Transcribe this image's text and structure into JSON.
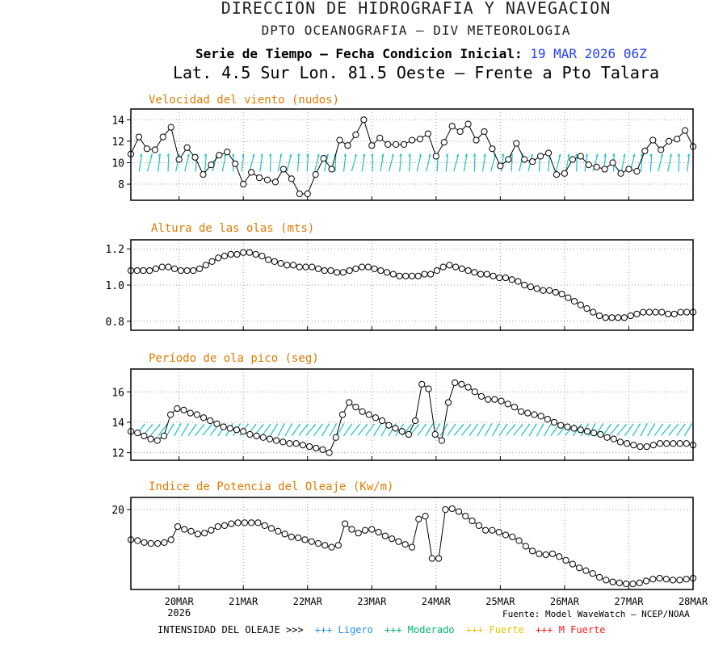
{
  "header": {
    "title": "DIRECCION DE HIDROGRAFIA Y NAVEGACION",
    "subtitle": "DPTO OCEANOGRAFIA – DIV METEOROLOGIA",
    "series_label": "Serie de Tiempo – Fecha Condicion Inicial:",
    "init_date": "19 MAR 2026 06Z",
    "location": "Lat. 4.5 Sur  Lon. 81.5 Oeste – Frente a Pto Talara"
  },
  "footer": {
    "source": "Fuente: Model WaveWatch – NCEP/NOAA",
    "legend_label": "INTENSIDAD DEL OLEAJE >>>",
    "legend_items": [
      "+++ Ligero",
      "+++ Moderado",
      "+++ Fuerte",
      "+++ M Fuerte"
    ],
    "legend_colors": [
      "#1e90ff",
      "#00b36b",
      "#e6c300",
      "#ff1a1a"
    ]
  },
  "chart_data": [
    {
      "type": "line",
      "title": "Velocidad del viento (nudos)",
      "ylim": [
        6.5,
        15
      ],
      "yticks": [
        8,
        10,
        12,
        14
      ],
      "ytick_labels": [
        "8",
        "10",
        "12",
        "14"
      ],
      "values": [
        10.8,
        12.4,
        11.3,
        11.2,
        12.4,
        13.3,
        10.3,
        11.4,
        10.5,
        8.9,
        9.8,
        10.7,
        11.0,
        9.9,
        8.0,
        9.1,
        8.6,
        8.4,
        8.2,
        9.4,
        8.5,
        7.1,
        7.1,
        8.9,
        10.4,
        9.4,
        12.1,
        11.6,
        12.6,
        14.0,
        11.6,
        12.3,
        11.7,
        11.7,
        11.7,
        12.1,
        12.2,
        12.7,
        10.6,
        11.9,
        13.4,
        12.9,
        13.6,
        12.1,
        12.9,
        11.3,
        9.7,
        10.3,
        11.8,
        10.3,
        10.1,
        10.6,
        10.9,
        8.9,
        9.0,
        10.3,
        10.6,
        9.8,
        9.6,
        9.4,
        10.0,
        9.0,
        9.4,
        9.2,
        11.1,
        12.1,
        11.2,
        12.0,
        12.2,
        13.0,
        11.5
      ],
      "arrows": "wind direction vectors at 10 kt level",
      "arrow_color": "#19c2c2"
    },
    {
      "type": "line",
      "title": "Altura de las olas (mts)",
      "ylim": [
        0.75,
        1.25
      ],
      "yticks": [
        0.8,
        1.0,
        1.2
      ],
      "ytick_labels": [
        "0.8",
        "1.0",
        "1.2"
      ],
      "values": [
        1.08,
        1.08,
        1.08,
        1.08,
        1.09,
        1.1,
        1.1,
        1.09,
        1.08,
        1.08,
        1.08,
        1.09,
        1.11,
        1.13,
        1.15,
        1.16,
        1.17,
        1.17,
        1.18,
        1.18,
        1.17,
        1.16,
        1.14,
        1.13,
        1.12,
        1.11,
        1.11,
        1.1,
        1.1,
        1.1,
        1.09,
        1.08,
        1.08,
        1.07,
        1.07,
        1.08,
        1.09,
        1.1,
        1.1,
        1.09,
        1.08,
        1.07,
        1.06,
        1.05,
        1.05,
        1.05,
        1.05,
        1.06,
        1.06,
        1.08,
        1.1,
        1.11,
        1.1,
        1.09,
        1.08,
        1.07,
        1.06,
        1.06,
        1.05,
        1.04,
        1.04,
        1.03,
        1.02,
        1.0,
        0.99,
        0.98,
        0.97,
        0.97,
        0.96,
        0.95,
        0.93,
        0.91,
        0.89,
        0.87,
        0.85,
        0.83,
        0.82,
        0.82,
        0.82,
        0.82,
        0.83,
        0.84,
        0.85,
        0.85,
        0.85,
        0.85,
        0.84,
        0.84,
        0.85,
        0.85,
        0.85
      ]
    },
    {
      "type": "line",
      "title": "Período de ola pico (seg)",
      "ylim": [
        11.5,
        17.5
      ],
      "yticks": [
        12,
        14,
        16
      ],
      "ytick_labels": [
        "12",
        "14",
        "16"
      ],
      "values": [
        13.4,
        13.3,
        13.1,
        12.9,
        12.8,
        13.1,
        14.5,
        14.9,
        14.8,
        14.6,
        14.5,
        14.3,
        14.1,
        13.9,
        13.7,
        13.6,
        13.5,
        13.4,
        13.2,
        13.1,
        13.0,
        12.9,
        12.8,
        12.7,
        12.6,
        12.6,
        12.5,
        12.4,
        12.3,
        12.2,
        12.0,
        13.0,
        14.5,
        15.3,
        15.0,
        14.7,
        14.5,
        14.3,
        14.1,
        13.8,
        13.6,
        13.4,
        13.2,
        14.1,
        16.5,
        16.2,
        13.2,
        12.8,
        15.3,
        16.6,
        16.5,
        16.3,
        16.0,
        15.7,
        15.5,
        15.5,
        15.4,
        15.2,
        15.0,
        14.7,
        14.6,
        14.5,
        14.4,
        14.2,
        14.0,
        13.8,
        13.7,
        13.6,
        13.5,
        13.4,
        13.3,
        13.2,
        13.0,
        12.9,
        12.7,
        12.6,
        12.5,
        12.4,
        12.4,
        12.5,
        12.6,
        12.6,
        12.6,
        12.6,
        12.6,
        12.5
      ],
      "arrows": "wave direction vectors at 13.5 s level",
      "arrow_color": "#19c2c2"
    },
    {
      "type": "line",
      "title": "Indice de Potencia del Oleaje (Kw/m)",
      "ylim": [
        11.5,
        21.3
      ],
      "yticks": [
        20
      ],
      "ytick_labels": [
        "20"
      ],
      "values": [
        16.8,
        16.7,
        16.5,
        16.4,
        16.4,
        16.5,
        16.8,
        18.2,
        17.9,
        17.7,
        17.4,
        17.5,
        17.8,
        18.2,
        18.3,
        18.5,
        18.6,
        18.6,
        18.6,
        18.6,
        18.3,
        18.0,
        17.7,
        17.4,
        17.1,
        17.0,
        16.8,
        16.6,
        16.4,
        16.2,
        16.0,
        16.2,
        18.5,
        17.9,
        17.5,
        17.8,
        17.9,
        17.6,
        17.2,
        16.9,
        16.6,
        16.3,
        16.0,
        19.0,
        19.3,
        14.8,
        14.8,
        20.0,
        20.1,
        19.8,
        19.3,
        18.8,
        18.3,
        17.8,
        17.8,
        17.6,
        17.3,
        17.1,
        16.7,
        16.1,
        15.6,
        15.3,
        15.2,
        15.3,
        15.0,
        14.6,
        14.2,
        13.8,
        13.5,
        13.2,
        12.8,
        12.5,
        12.3,
        12.2,
        12.1,
        12.1,
        12.2,
        12.4,
        12.6,
        12.7,
        12.6,
        12.5,
        12.5,
        12.6,
        12.7
      ]
    }
  ],
  "x_axis": {
    "tick_labels": [
      "20MAR",
      "21MAR",
      "22MAR",
      "23MAR",
      "24MAR",
      "25MAR",
      "26MAR",
      "27MAR",
      "28MAR"
    ],
    "year_label": "2026",
    "t_start_day": 19.25,
    "t_end_day": 28
  }
}
